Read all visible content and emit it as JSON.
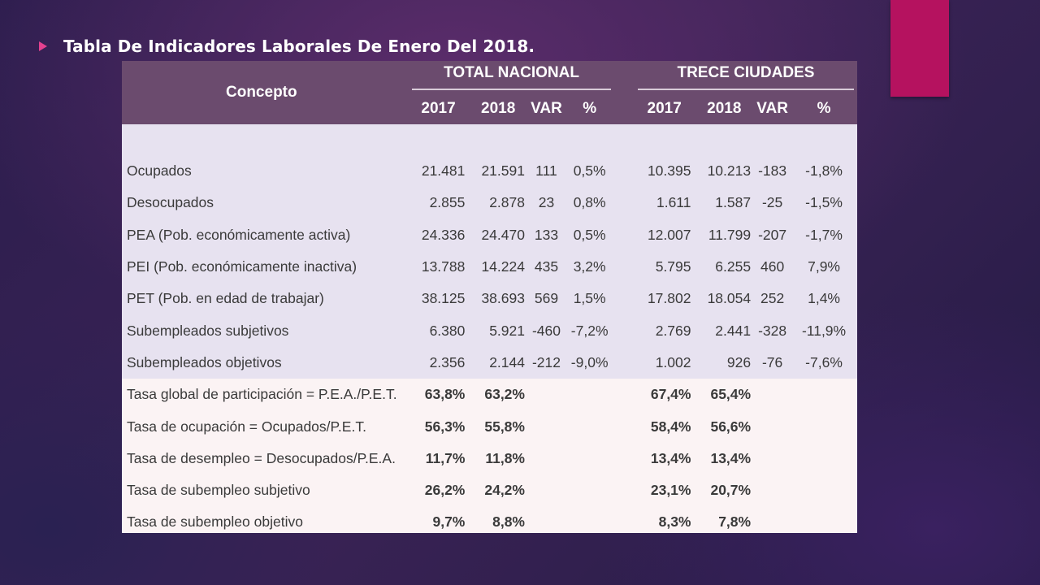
{
  "slide": {
    "title": "Tabla De Indicadores Laborales De Enero Del 2018.",
    "colors": {
      "accent": "#b5125f",
      "bullet": "#e3418f",
      "header_bg": "#6b4b6e",
      "row_band_a": "#e7e2f0",
      "row_band_b": "#fbf3f4"
    }
  },
  "table": {
    "header_concept": "Concepto",
    "group_nacional": "TOTAL NACIONAL",
    "group_ciudades": "TRECE CIUDADES",
    "sub_headers": [
      "2017",
      "2018",
      "VAR",
      "%",
      "2017",
      "2018",
      "VAR",
      "%"
    ],
    "rows": [
      {
        "concept": "Ocupados",
        "n2017": "21.481",
        "n2018": "21.591",
        "nvar": "111",
        "npct": "0,5%",
        "t2017": "10.395",
        "t2018": "10.213",
        "tvar": "-183",
        "tpct": "-1,8%"
      },
      {
        "concept": "Desocupados",
        "n2017": "2.855",
        "n2018": "2.878",
        "nvar": "23",
        "npct": "0,8%",
        "t2017": "1.611",
        "t2018": "1.587",
        "tvar": "-25",
        "tpct": "-1,5%"
      },
      {
        "concept": "PEA (Pob. económicamente activa)",
        "n2017": "24.336",
        "n2018": "24.470",
        "nvar": "133",
        "npct": "0,5%",
        "t2017": "12.007",
        "t2018": "11.799",
        "tvar": "-207",
        "tpct": "-1,7%"
      },
      {
        "concept": "PEI (Pob. económicamente inactiva)",
        "n2017": "13.788",
        "n2018": "14.224",
        "nvar": "435",
        "npct": "3,2%",
        "t2017": "5.795",
        "t2018": "6.255",
        "tvar": "460",
        "tpct": "7,9%"
      },
      {
        "concept": "PET (Pob. en edad de trabajar)",
        "n2017": "38.125",
        "n2018": "38.693",
        "nvar": "569",
        "npct": "1,5%",
        "t2017": "17.802",
        "t2018": "18.054",
        "tvar": "252",
        "tpct": "1,4%"
      },
      {
        "concept": "Subempleados subjetivos",
        "n2017": "6.380",
        "n2018": "5.921",
        "nvar": "-460",
        "npct": "-7,2%",
        "t2017": "2.769",
        "t2018": "2.441",
        "tvar": "-328",
        "tpct": "-11,9%"
      },
      {
        "concept": "Subempleados objetivos",
        "n2017": "2.356",
        "n2018": "2.144",
        "nvar": "-212",
        "npct": "-9,0%",
        "t2017": "1.002",
        "t2018": "926",
        "tvar": "-76",
        "tpct": "-7,6%"
      }
    ],
    "rate_rows": [
      {
        "concept": "Tasa global de participación = P.E.A./P.E.T.",
        "n2017": "63,8%",
        "n2018": "63,2%",
        "t2017": "67,4%",
        "t2018": "65,4%"
      },
      {
        "concept": "Tasa de ocupación = Ocupados/P.E.T.",
        "n2017": "56,3%",
        "n2018": "55,8%",
        "t2017": "58,4%",
        "t2018": "56,6%"
      },
      {
        "concept": "Tasa de desempleo = Desocupados/P.E.A.",
        "n2017": "11,7%",
        "n2018": "11,8%",
        "t2017": "13,4%",
        "t2018": "13,4%"
      },
      {
        "concept": "Tasa de subempleo subjetivo",
        "n2017": "26,2%",
        "n2018": "24,2%",
        "t2017": "23,1%",
        "t2018": "20,7%"
      },
      {
        "concept": "Tasa de subempleo objetivo",
        "n2017": "9,7%",
        "n2018": "8,8%",
        "t2017": "8,3%",
        "t2018": "7,8%"
      }
    ]
  }
}
